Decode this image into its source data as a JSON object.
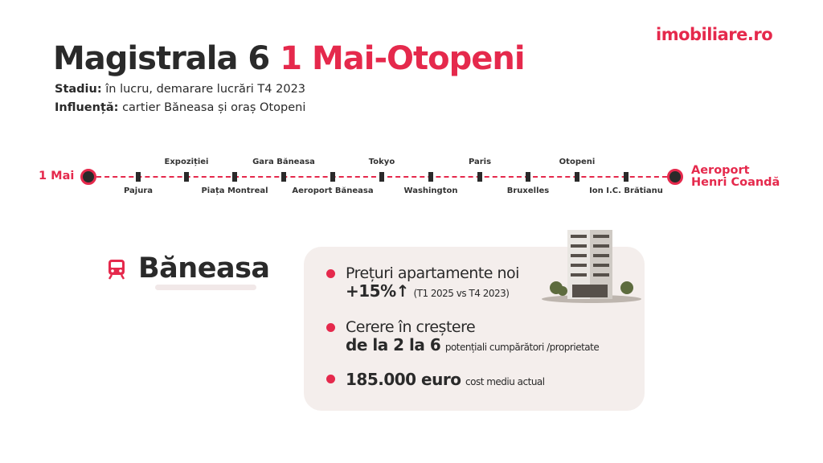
{
  "brand": {
    "logo": "imobiliare.ro"
  },
  "header": {
    "title_main": "Magistrala 6",
    "title_accent": "1 Mai-Otopeni",
    "status_label": "Stadiu:",
    "status_value": " în lucru, demarare lucrări T4 2023",
    "influence_label": "Influență:",
    "influence_value": " cartier Băneasa și oraș Otopeni"
  },
  "line": {
    "start": "1 Mai",
    "end_line1": "Aeroport",
    "end_line2": "Henri Coandă",
    "stations": [
      "Pajura",
      "Expoziției",
      "Piața Montreal",
      "Gara Băneasa",
      "Aeroport Băneasa",
      "Tokyo",
      "Washington",
      "Paris",
      "Bruxelles",
      "Otopeni",
      "Ion I.C. Brătianu"
    ]
  },
  "area": {
    "name": "Băneasa",
    "icon": "train-icon"
  },
  "facts": [
    {
      "line1": "Prețuri apartamente noi",
      "big": "+15%↑",
      "small": "(T1 2025 vs T4 2023)"
    },
    {
      "line1": "Cerere în creștere",
      "big": "de la 2 la 6",
      "small": "potențiali cumpărători /proprietate"
    },
    {
      "big": "185.000 euro",
      "small": "cost mediu actual"
    }
  ],
  "colors": {
    "accent": "#e5294c",
    "dark": "#2a2a2a",
    "panel": "#f4eeec"
  }
}
